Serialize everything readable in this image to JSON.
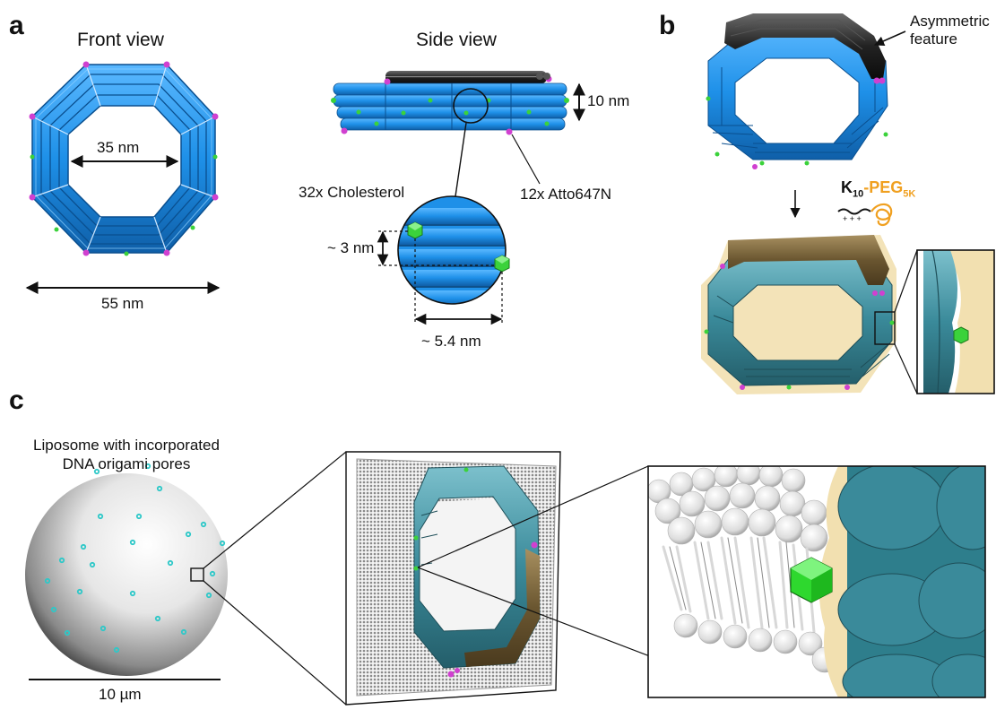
{
  "panels": {
    "a": "a",
    "b": "b",
    "c": "c"
  },
  "panel_a": {
    "front_view_title": "Front view",
    "side_view_title": "Side view",
    "inner_diameter": "35 nm",
    "outer_diameter": "55 nm",
    "height": "10 nm",
    "cholesterol_label": "32x Cholesterol",
    "dye_label": "12x Atto647N",
    "helix_spacing": "~ 3 nm",
    "cholesterol_spacing": "~ 5.4 nm"
  },
  "panel_b": {
    "asymmetric_line1": "Asymmetric",
    "asymmetric_line2": "feature",
    "peptide_k": "K",
    "peptide_k_sub": "10",
    "peptide_dash": "-",
    "peptide_peg": "PEG",
    "peptide_peg_sub": "5K",
    "charge_signs": "+ + +"
  },
  "panel_c": {
    "liposome_line1": "Liposome with incorporated",
    "liposome_line2": "DNA origami pores",
    "scale_bar": "10 µm"
  },
  "colors": {
    "helix_blue": "#1e90e8",
    "helix_dark": "#0f5fa8",
    "asymmetric_black": "#1e1e1e",
    "cholesterol_green": "#3bd23b",
    "dye_magenta": "#d040d0",
    "peg_orange": "#f0a020",
    "coated_teal": "#3a8a9a",
    "coat_tan": "#f2e0b0",
    "pore_cyan": "#2ec8c8"
  },
  "icons": [
    "arrow-icon",
    "cholesterol-icon",
    "dye-icon",
    "lipid-icon",
    "peg-chain-icon"
  ]
}
